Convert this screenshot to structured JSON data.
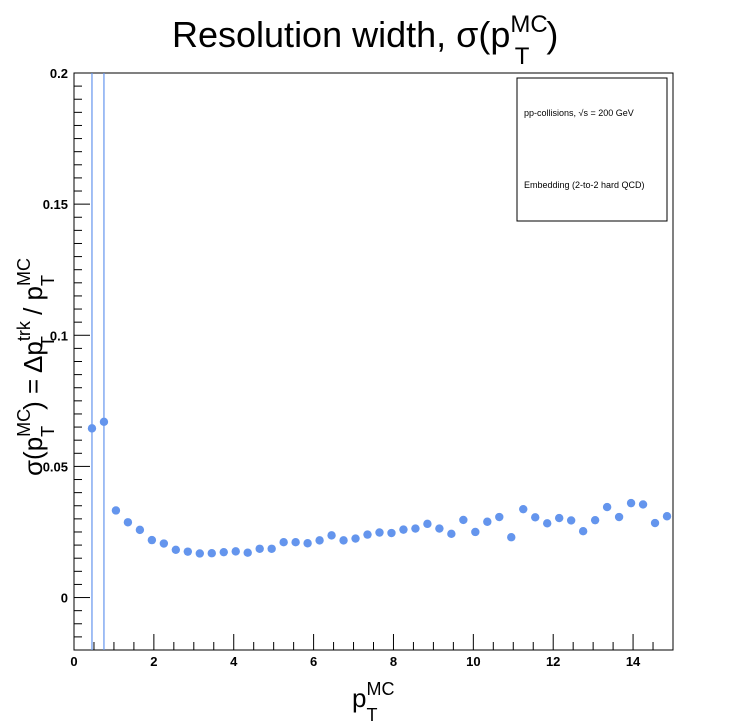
{
  "chart_data": {
    "type": "scatter",
    "title": "Resolution width, σ(pTMC)",
    "title_parts": {
      "main": "Resolution width, σ(p",
      "sup": "MC",
      "sub": "T",
      "close": ")"
    },
    "xlabel": "pTMC",
    "xlabel_parts": {
      "main": "p",
      "sup": "MC",
      "sub": "T"
    },
    "ylabel": "σ(pTMC) = ΔpTtrk / pTMC",
    "ylabel_parts": {
      "a": "σ(p",
      "a_sup": "MC",
      "a_sub": "T",
      "b": ") = Δp",
      "b_sup": "trk",
      "b_sub": "T",
      "c": " / p",
      "c_sup": "MC",
      "c_sub": "T"
    },
    "xlim": [
      0,
      15
    ],
    "ylim": [
      -0.02,
      0.2
    ],
    "xticks": [
      0,
      2,
      4,
      6,
      8,
      10,
      12,
      14
    ],
    "xtick_labels": [
      "0",
      "2",
      "4",
      "6",
      "8",
      "10",
      "12",
      "14"
    ],
    "yticks": [
      0,
      0.05,
      0.1,
      0.15,
      0.2
    ],
    "ytick_labels": [
      "0",
      "0.05",
      "0.1",
      "0.15",
      "0.2"
    ],
    "grid": false,
    "legend": {
      "placement": "top-right",
      "entries": [
        "pp-collisions, √s = 200 GeV",
        "Embedding (2-to-2 hard QCD)"
      ]
    },
    "color": "#6495ed",
    "vertical_lines_x": [
      0.45,
      0.75
    ],
    "series": [
      {
        "x": [
          0.45,
          0.75,
          1.05,
          1.35,
          1.65,
          1.95,
          2.25,
          2.55,
          2.85,
          3.15,
          3.45,
          3.75,
          4.05,
          4.35,
          4.65,
          4.95,
          5.25,
          5.55,
          5.85,
          6.15,
          6.45,
          6.75,
          7.05,
          7.35,
          7.65,
          7.95,
          8.25,
          8.55,
          8.85,
          9.15,
          9.45,
          9.75,
          10.05,
          10.35,
          10.65,
          10.95,
          11.25,
          11.55,
          11.85,
          12.15,
          12.45,
          12.75,
          13.05,
          13.35,
          13.65,
          13.95,
          14.25,
          14.55,
          14.85
        ],
        "y": [
          0.0645,
          0.067,
          0.0332,
          0.0287,
          0.0258,
          0.0219,
          0.0206,
          0.0182,
          0.0175,
          0.0168,
          0.0169,
          0.0173,
          0.0176,
          0.0171,
          0.0186,
          0.0186,
          0.0211,
          0.0211,
          0.0207,
          0.0218,
          0.0237,
          0.0218,
          0.0225,
          0.024,
          0.0248,
          0.0246,
          0.0259,
          0.0263,
          0.0281,
          0.0263,
          0.0243,
          0.0296,
          0.025,
          0.0289,
          0.0307,
          0.023,
          0.0337,
          0.0306,
          0.0283,
          0.0303,
          0.0294,
          0.0253,
          0.0295,
          0.0345,
          0.0307,
          0.036,
          0.0355,
          0.0284,
          0.031
        ]
      }
    ]
  }
}
